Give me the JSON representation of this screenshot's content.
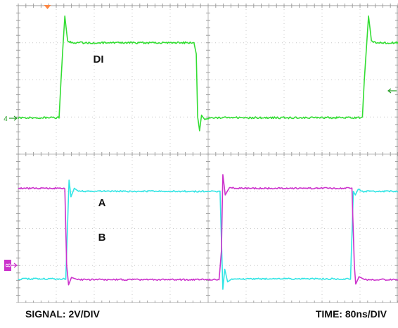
{
  "footer": {
    "signal": "SIGNAL: 2V/DIV",
    "time": "TIME: 80ns/DIV"
  },
  "chart_data": {
    "type": "line",
    "title": "",
    "xlabel": "",
    "ylabel": "",
    "x_units": "ns",
    "xlim": [
      0,
      800
    ],
    "grid": true,
    "grid_divisions": {
      "x": 10,
      "y": 8
    },
    "channels": [
      {
        "name": "DI",
        "label": "DI",
        "marker": "4",
        "color": "#33dd33",
        "panel": "top",
        "volts_per_div": 2,
        "ylim_div": [
          0,
          4
        ],
        "points": [
          [
            0,
            0.98
          ],
          [
            86,
            0.98
          ],
          [
            90,
            2.0
          ],
          [
            98,
            3.72
          ],
          [
            104,
            3.05
          ],
          [
            115,
            3.0
          ],
          [
            370,
            3.0
          ],
          [
            375,
            2.7
          ],
          [
            378,
            1.0
          ],
          [
            382,
            0.63
          ],
          [
            386,
            1.05
          ],
          [
            393,
            0.93
          ],
          [
            402,
            0.98
          ],
          [
            725,
            0.98
          ],
          [
            729,
            2.0
          ],
          [
            738,
            3.72
          ],
          [
            744,
            3.05
          ],
          [
            755,
            3.0
          ],
          [
            800,
            3.0
          ]
        ],
        "ringing_amplitude_div": 0.05
      },
      {
        "name": "A",
        "label": "A",
        "color": "#33e5e5",
        "panel": "bottom",
        "volts_per_div": 2,
        "ylim_div": [
          0,
          4
        ],
        "points": [
          [
            0,
            0.64
          ],
          [
            100,
            0.64
          ],
          [
            107,
            3.3
          ],
          [
            111,
            2.85
          ],
          [
            118,
            3.08
          ],
          [
            127,
            3.0
          ],
          [
            425,
            3.0
          ],
          [
            431,
            0.36
          ],
          [
            435,
            0.9
          ],
          [
            441,
            0.56
          ],
          [
            450,
            0.64
          ],
          [
            700,
            0.64
          ],
          [
            706,
            3.0
          ],
          [
            710,
            2.9
          ],
          [
            716,
            3.05
          ],
          [
            725,
            3.0
          ],
          [
            800,
            3.0
          ]
        ],
        "ringing_amplitude_div": 0.04
      },
      {
        "name": "B",
        "label": "B",
        "marker": "8",
        "color": "#cc33cc",
        "panel": "bottom",
        "volts_per_div": 2,
        "ylim_div": [
          0,
          4
        ],
        "points": [
          [
            0,
            3.08
          ],
          [
            98,
            3.08
          ],
          [
            102,
            1.0
          ],
          [
            106,
            0.48
          ],
          [
            112,
            0.68
          ],
          [
            125,
            0.62
          ],
          [
            423,
            0.62
          ],
          [
            428,
            1.4
          ],
          [
            431,
            3.45
          ],
          [
            436,
            2.9
          ],
          [
            445,
            3.1
          ],
          [
            456,
            3.08
          ],
          [
            703,
            3.08
          ],
          [
            708,
            1.0
          ],
          [
            711,
            0.5
          ],
          [
            718,
            0.7
          ],
          [
            730,
            0.62
          ],
          [
            800,
            0.62
          ]
        ],
        "ringing_amplitude_div": 0.04
      }
    ]
  }
}
